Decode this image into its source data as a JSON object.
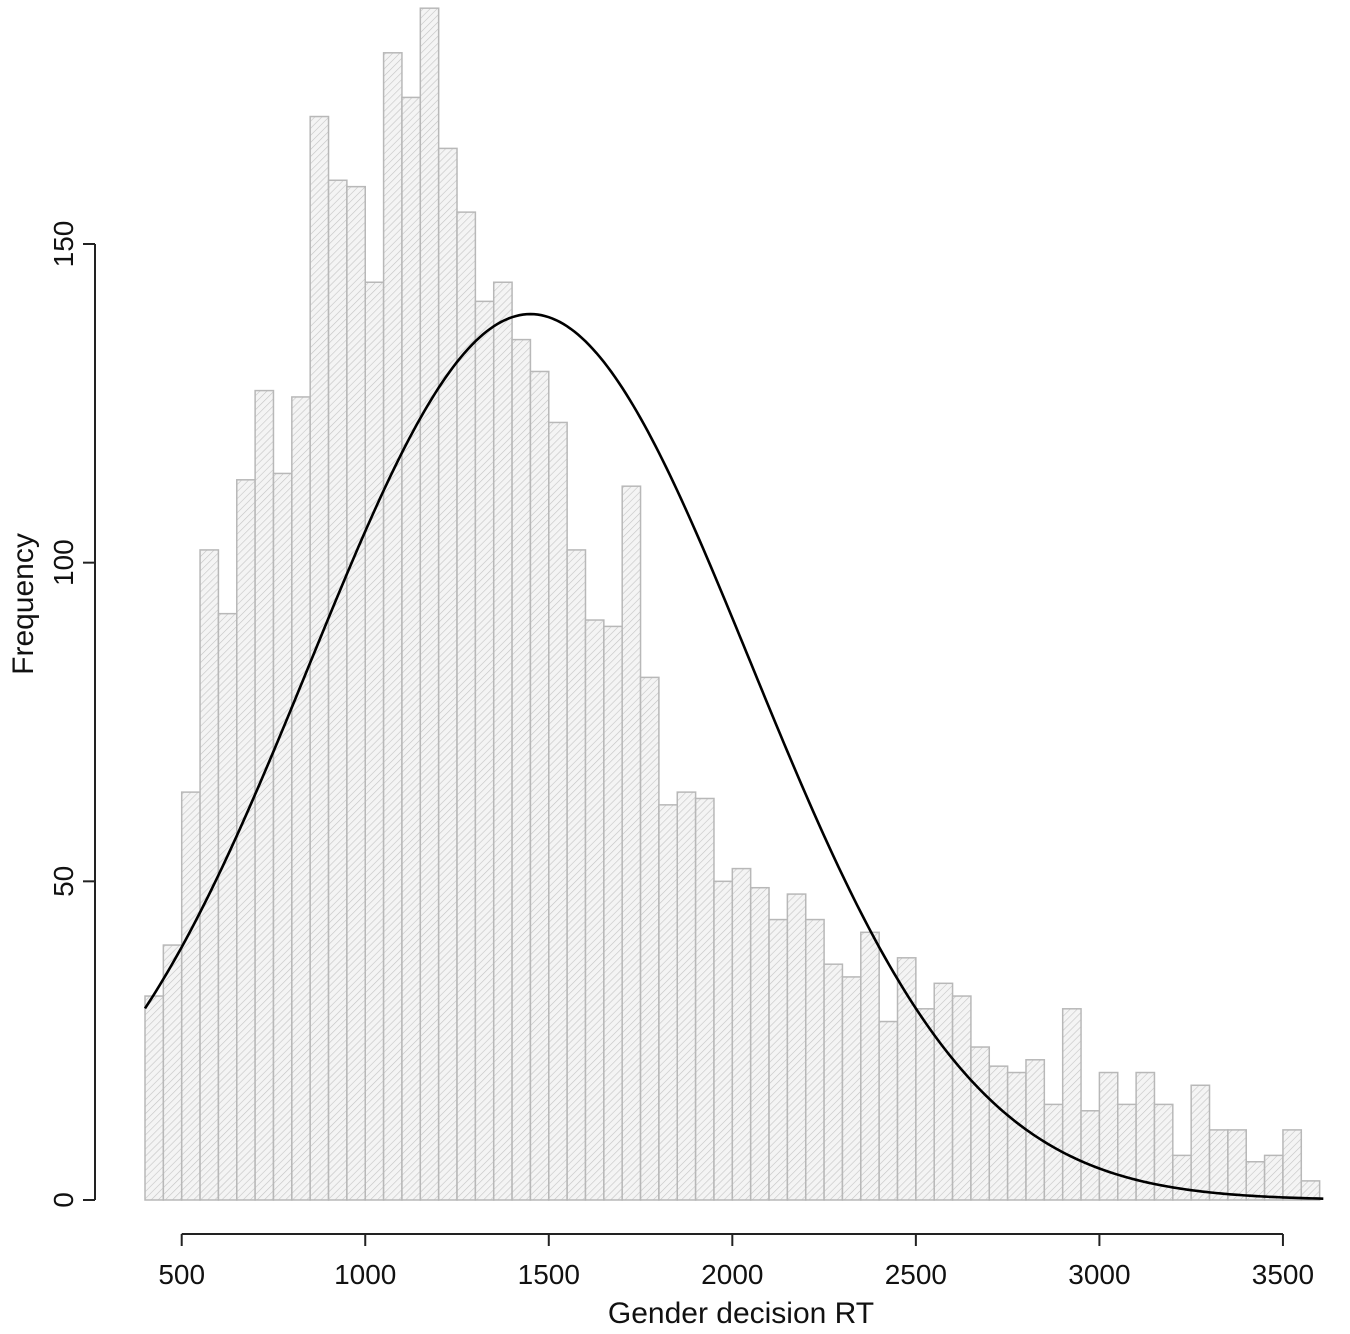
{
  "chart_data": {
    "type": "bar",
    "xlabel": "Gender decision RT",
    "ylabel": "Frequency",
    "xlim": [
      400,
      3650
    ],
    "ylim": [
      0,
      150
    ],
    "x_ticks": [
      500,
      1000,
      1500,
      2000,
      2500,
      3000,
      3500
    ],
    "y_ticks": [
      0,
      50,
      100,
      150
    ],
    "bin_width": 50,
    "bins_start": 400,
    "values": [
      32,
      40,
      64,
      102,
      92,
      113,
      127,
      114,
      126,
      170,
      160,
      159,
      144,
      180,
      173,
      187,
      165,
      155,
      141,
      144,
      135,
      130,
      122,
      102,
      91,
      90,
      112,
      82,
      62,
      64,
      63,
      50,
      52,
      49,
      44,
      48,
      44,
      37,
      35,
      42,
      28,
      38,
      30,
      34,
      32,
      24,
      21,
      20,
      22,
      15,
      30,
      14,
      20,
      15,
      20,
      15,
      7,
      18,
      11,
      11,
      6,
      7,
      11,
      3
    ],
    "fit_curve": {
      "type": "normal density scaled",
      "mean": 1450,
      "sd": 600,
      "peak": 139,
      "x_range": [
        400,
        3610
      ]
    },
    "grid": false,
    "legend": "none",
    "colors": {
      "bar_fill": "#f4f4f4",
      "bar_hatch": "#c4c4c4",
      "bar_edge": "#b8b8b8",
      "curve": "#000000"
    }
  }
}
